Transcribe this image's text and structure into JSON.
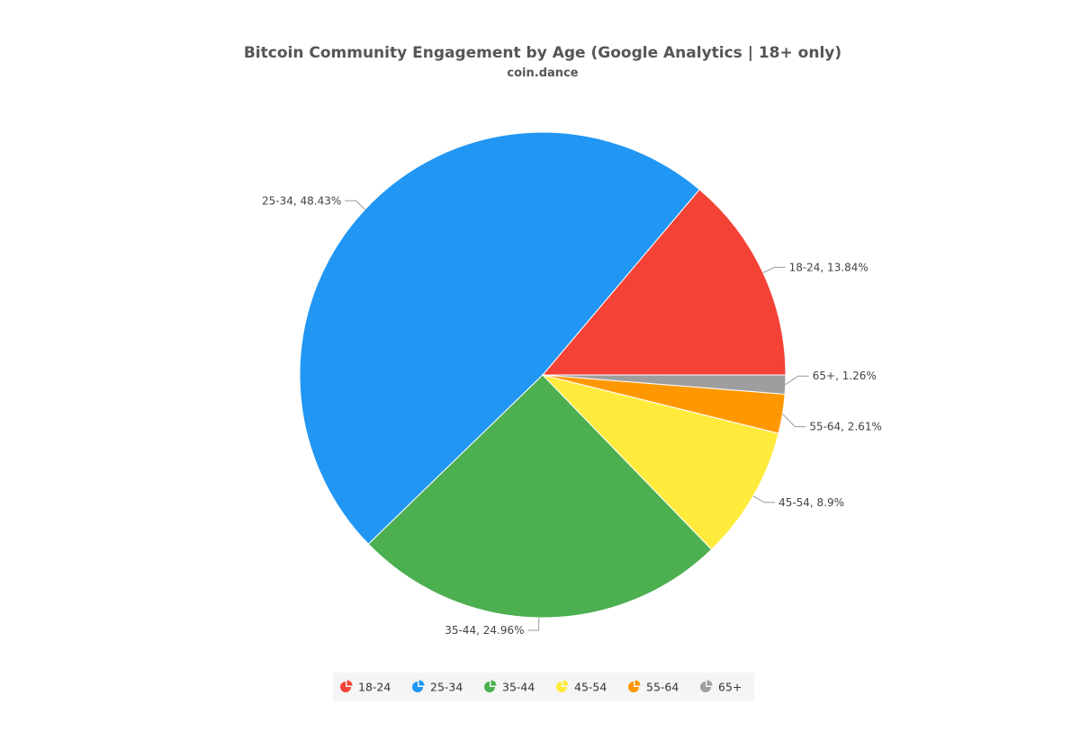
{
  "chart_data": {
    "type": "pie",
    "title": "Bitcoin Community Engagement by Age (Google Analytics | 18+ only)",
    "subtitle": "coin.dance",
    "categories": [
      "18-24",
      "25-34",
      "35-44",
      "45-54",
      "55-64",
      "65+"
    ],
    "values": [
      13.84,
      48.43,
      24.96,
      8.9,
      2.61,
      1.26
    ],
    "data_labels": [
      "18-24, 13.84%",
      "25-34, 48.43%",
      "35-44, 24.96%",
      "45-54, 8.9%",
      "55-64, 2.61%",
      "65+, 1.26%"
    ],
    "colors": [
      "#F44336",
      "#2196F3",
      "#4CAF50",
      "#FFEB3B",
      "#FF9800",
      "#9E9E9E"
    ],
    "legend_position": "bottom"
  }
}
